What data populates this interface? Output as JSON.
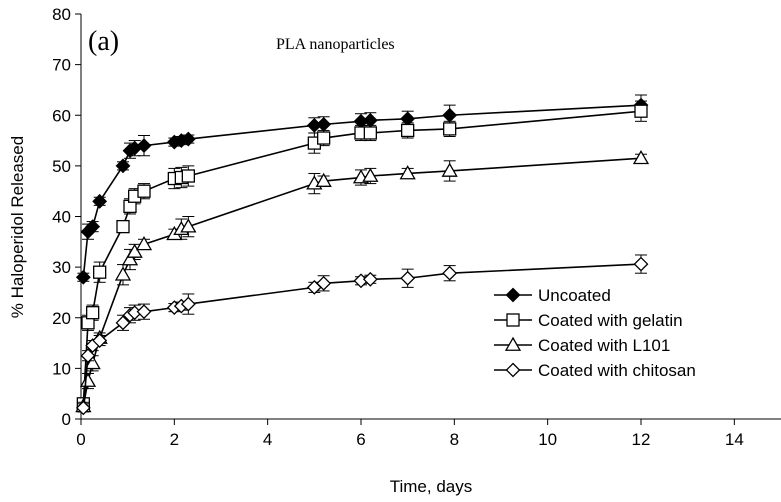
{
  "chart_data": {
    "type": "scatter",
    "panel_label": "(a)",
    "annotation": "PLA nanoparticles",
    "xlabel": "Time, days",
    "ylabel": "% Haloperidol Released",
    "xlim": [
      0,
      15
    ],
    "ylim": [
      0,
      80
    ],
    "xticks": [
      0,
      2,
      4,
      6,
      8,
      10,
      12,
      14
    ],
    "yticks": [
      0,
      10,
      20,
      30,
      40,
      50,
      60,
      70,
      80
    ],
    "grid": false,
    "legend_position": "bottom-right",
    "series": [
      {
        "name": "Uncoated",
        "marker": "filled-diamond",
        "x": [
          0.05,
          0.15,
          0.25,
          0.4,
          0.9,
          1.05,
          1.15,
          1.35,
          2.0,
          2.15,
          2.3,
          5.0,
          5.2,
          6.0,
          6.2,
          7.0,
          7.9,
          12.0
        ],
        "y": [
          28.0,
          37.0,
          38.0,
          43.0,
          50.0,
          53.0,
          53.5,
          54.0,
          54.7,
          55.0,
          55.3,
          58.0,
          58.2,
          58.8,
          59.0,
          59.3,
          60.0,
          62.0
        ],
        "err": [
          0.8,
          1.5,
          1.0,
          0.8,
          0.8,
          1.5,
          1.5,
          2.0,
          0.8,
          0.8,
          0.8,
          1.5,
          1.5,
          1.5,
          1.5,
          1.5,
          2.0,
          2.0
        ]
      },
      {
        "name": "Coated with gelatin",
        "marker": "open-square",
        "x": [
          0.05,
          0.15,
          0.25,
          0.4,
          0.9,
          1.05,
          1.15,
          1.35,
          2.0,
          2.15,
          2.3,
          5.0,
          5.2,
          6.0,
          6.2,
          7.0,
          7.9,
          12.0
        ],
        "y": [
          3.0,
          19.0,
          21.0,
          29.0,
          38.0,
          42.0,
          44.0,
          45.0,
          47.5,
          47.7,
          48.0,
          54.5,
          55.5,
          56.5,
          56.5,
          57.0,
          57.3,
          60.8
        ],
        "err": [
          0.8,
          1.5,
          1.5,
          2.0,
          1.0,
          1.5,
          1.5,
          1.5,
          2.0,
          2.0,
          2.0,
          2.0,
          1.5,
          1.5,
          1.5,
          1.5,
          1.5,
          2.0
        ]
      },
      {
        "name": "Coated with L101",
        "marker": "open-triangle",
        "x": [
          0.05,
          0.15,
          0.25,
          0.4,
          0.9,
          1.05,
          1.15,
          1.35,
          2.0,
          2.15,
          2.3,
          5.0,
          5.2,
          6.0,
          6.2,
          7.0,
          7.9,
          12.0
        ],
        "y": [
          2.5,
          7.5,
          11.0,
          16.0,
          28.5,
          31.5,
          33.0,
          34.5,
          36.5,
          37.5,
          38.0,
          46.5,
          47.0,
          47.7,
          48.0,
          48.5,
          49.0,
          51.5
        ],
        "err": [
          0.8,
          1.5,
          1.5,
          1.0,
          2.0,
          2.0,
          1.5,
          1.0,
          1.0,
          2.0,
          2.0,
          2.0,
          1.0,
          1.5,
          1.5,
          1.0,
          2.0,
          0.8
        ]
      },
      {
        "name": "Coated with chitosan",
        "marker": "open-diamond",
        "x": [
          0.05,
          0.15,
          0.25,
          0.4,
          0.9,
          1.05,
          1.15,
          1.35,
          2.0,
          2.15,
          2.3,
          5.0,
          5.2,
          6.0,
          6.2,
          7.0,
          7.9,
          12.0
        ],
        "y": [
          2.2,
          12.5,
          14.5,
          15.5,
          19.0,
          20.5,
          21.0,
          21.2,
          22.0,
          22.3,
          22.7,
          26.0,
          26.8,
          27.3,
          27.6,
          27.8,
          28.8,
          30.6
        ],
        "err": [
          0.8,
          1.0,
          1.0,
          1.0,
          1.5,
          1.5,
          1.5,
          1.5,
          0.8,
          0.8,
          2.0,
          1.0,
          1.5,
          0.8,
          0.8,
          1.8,
          1.5,
          1.8
        ]
      }
    ]
  }
}
